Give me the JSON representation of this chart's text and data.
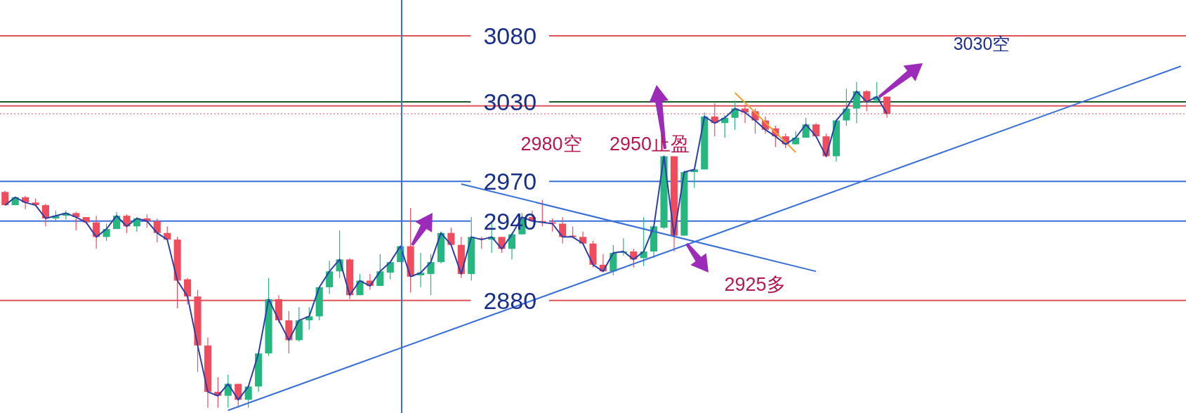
{
  "chart_data": {
    "type": "candlestick",
    "categories": [
      null,
      null,
      null,
      null,
      null,
      null,
      null,
      null,
      null,
      null,
      null,
      null,
      null,
      null,
      null,
      null,
      null,
      null,
      null,
      null,
      null,
      null,
      null,
      null,
      null,
      null,
      null,
      null,
      null,
      null,
      null,
      null,
      null,
      null,
      null,
      null,
      null,
      null,
      null,
      null,
      null,
      null,
      null,
      null,
      null,
      null,
      null,
      null,
      null,
      null,
      null,
      null,
      null,
      null,
      null,
      null,
      null,
      null,
      null,
      null,
      null,
      null,
      null,
      null,
      null,
      null,
      null,
      null,
      null,
      null,
      null,
      null,
      null,
      null,
      null,
      null,
      null,
      null,
      null,
      null,
      null,
      null,
      null,
      null,
      null,
      null,
      null,
      null,
      null,
      null,
      null,
      null,
      null,
      null,
      null,
      null,
      null,
      null,
      null,
      null,
      null,
      null,
      null,
      null,
      null,
      null,
      null,
      null,
      null,
      null,
      null,
      null,
      null,
      null,
      null,
      null,
      null
    ],
    "ohlc": [
      [
        2962,
        2963,
        2952,
        2952
      ],
      [
        2952,
        2958,
        2952,
        2958
      ],
      [
        2958,
        2959,
        2949,
        2954
      ],
      [
        2954,
        2957,
        2952,
        2952
      ],
      [
        2952,
        2953,
        2936,
        2942
      ],
      [
        2942,
        2948,
        2940,
        2944
      ],
      [
        2944,
        2948,
        2941,
        2946
      ],
      [
        2946,
        2947,
        2933,
        2943
      ],
      [
        2943,
        2943,
        2938,
        2939
      ],
      [
        2939,
        2944,
        2919,
        2928
      ],
      [
        2928,
        2938,
        2925,
        2934
      ],
      [
        2934,
        2947,
        2934,
        2944
      ],
      [
        2944,
        2945,
        2931,
        2936
      ],
      [
        2936,
        2943,
        2932,
        2942
      ],
      [
        2942,
        2945,
        2935,
        2940
      ],
      [
        2940,
        2942,
        2924,
        2931
      ],
      [
        2931,
        2936,
        2926,
        2926
      ],
      [
        2926,
        2928,
        2874,
        2895
      ],
      [
        2896,
        2897,
        2877,
        2883
      ],
      [
        2883,
        2888,
        2826,
        2846
      ],
      [
        2846,
        2852,
        2799,
        2811
      ],
      [
        2811,
        2822,
        2799,
        2808
      ],
      [
        2808,
        2824,
        2799,
        2817
      ],
      [
        2817,
        2817,
        2799,
        2805
      ],
      [
        2805,
        2815,
        2799,
        2815
      ],
      [
        2815,
        2840,
        2811,
        2840
      ],
      [
        2840,
        2897,
        2838,
        2881
      ],
      [
        2881,
        2884,
        2863,
        2865
      ],
      [
        2865,
        2872,
        2840,
        2850
      ],
      [
        2850,
        2875,
        2849,
        2865
      ],
      [
        2865,
        2875,
        2858,
        2868
      ],
      [
        2868,
        2890,
        2865,
        2890
      ],
      [
        2890,
        2910,
        2885,
        2902
      ],
      [
        2902,
        2933,
        2897,
        2911
      ],
      [
        2911,
        2912,
        2881,
        2884
      ],
      [
        2884,
        2900,
        2884,
        2895
      ],
      [
        2895,
        2900,
        2888,
        2891
      ],
      [
        2891,
        2915,
        2891,
        2902
      ],
      [
        2901,
        2909,
        2896,
        2909
      ],
      [
        2909,
        2921,
        2909,
        2921
      ],
      [
        2921,
        2950,
        2886,
        2898
      ],
      [
        2899,
        2916,
        2890,
        2901
      ],
      [
        2900,
        2915,
        2884,
        2909
      ],
      [
        2909,
        2932,
        2908,
        2931
      ],
      [
        2931,
        2935,
        2922,
        2922
      ],
      [
        2922,
        2928,
        2897,
        2900
      ],
      [
        2900,
        2943,
        2895,
        2928
      ],
      [
        2927,
        2928,
        2919,
        2926
      ],
      [
        2926,
        2940,
        2916,
        2928
      ],
      [
        2928,
        2928,
        2916,
        2919
      ],
      [
        2919,
        2931,
        2911,
        2930
      ],
      [
        2930,
        2946,
        2930,
        2943
      ],
      [
        2943,
        2948,
        2940,
        2940
      ],
      [
        2940,
        2956,
        2936,
        2939
      ],
      [
        2939,
        2942,
        2932,
        2938
      ],
      [
        2938,
        2943,
        2923,
        2928
      ],
      [
        2929,
        2936,
        2927,
        2928
      ],
      [
        2928,
        2932,
        2923,
        2923
      ],
      [
        2923,
        2925,
        2905,
        2907
      ],
      [
        2907,
        2915,
        2902,
        2902
      ],
      [
        2902,
        2922,
        2899,
        2916
      ],
      [
        2916,
        2927,
        2914,
        2917
      ],
      [
        2917,
        2919,
        2905,
        2911
      ],
      [
        2912,
        2943,
        2906,
        2917
      ],
      [
        2917,
        2936,
        2912,
        2936
      ],
      [
        2935,
        2989,
        2934,
        2989
      ],
      [
        2989,
        2989,
        2917,
        2929
      ],
      [
        2929,
        2978,
        2929,
        2977
      ],
      [
        2977,
        2980,
        2965,
        2979
      ],
      [
        2979,
        3022,
        2979,
        3019
      ],
      [
        3019,
        3029,
        3004,
        3014
      ],
      [
        3014,
        3020,
        3003,
        3018
      ],
      [
        3018,
        3031,
        3009,
        3025
      ],
      [
        3025,
        3028,
        3014,
        3022
      ],
      [
        3023,
        3025,
        3006,
        3016
      ],
      [
        3016,
        3019,
        3006,
        3009
      ],
      [
        3010,
        3012,
        2996,
        3004
      ],
      [
        3004,
        3006,
        2995,
        2998
      ],
      [
        2998,
        3008,
        2998,
        3003
      ],
      [
        3003,
        3018,
        3003,
        3013
      ],
      [
        3013,
        3014,
        3004,
        3004
      ],
      [
        3004,
        3006,
        2988,
        2989
      ],
      [
        2989,
        3016,
        2985,
        3016
      ],
      [
        3016,
        3040,
        3012,
        3025
      ],
      [
        3025,
        3045,
        3014,
        3038
      ],
      [
        3038,
        3039,
        3023,
        3030
      ],
      [
        3031,
        3045,
        3029,
        3034
      ],
      [
        3034,
        3034,
        3018,
        3021
      ],
      null,
      null,
      null,
      null,
      null,
      null,
      null,
      null,
      null,
      null,
      null,
      null,
      null,
      null,
      null,
      null,
      null,
      null,
      null,
      null,
      null,
      null,
      null,
      null,
      null,
      null,
      null,
      null,
      null
    ],
    "colors": [
      "#ef4d5e",
      "#26b67f",
      "#ef4d5e",
      "#ef4d5e",
      "#ef4d5e",
      "#26b67f",
      "#26b67f",
      "#ef4d5e",
      "#ef4d5e",
      "#ef4d5e",
      "#26b67f",
      "#26b67f",
      "#ef4d5e",
      "#26b67f",
      "#ef4d5e",
      "#ef4d5e",
      "#ef4d5e",
      "#ef4d5e",
      "#ef4d5e",
      "#ef4d5e",
      "#ef4d5e",
      "#ef4d5e",
      "#26b67f",
      "#ef4d5e",
      "#26b67f",
      "#26b67f",
      "#26b67f",
      "#ef4d5e",
      "#ef4d5e",
      "#26b67f",
      "#26b67f",
      "#26b67f",
      "#26b67f",
      "#26b67f",
      "#ef4d5e",
      "#26b67f",
      "#ef4d5e",
      "#26b67f",
      "#26b67f",
      "#26b67f",
      "#ef4d5e",
      "#26b67f",
      "#26b67f",
      "#26b67f",
      "#ef4d5e",
      "#ef4d5e",
      "#26b67f",
      "#ef4d5e",
      "#26b67f",
      "#ef4d5e",
      "#26b67f",
      "#26b67f",
      "#ef4d5e",
      "#ef4d5e",
      "#ef4d5e",
      "#ef4d5e",
      "#ef4d5e",
      "#ef4d5e",
      "#ef4d5e",
      "#ef4d5e",
      "#26b67f",
      "#26b67f",
      "#ef4d5e",
      "#26b67f",
      "#26b67f",
      "#26b67f",
      "#ef4d5e",
      "#26b67f",
      "#26b67f",
      "#26b67f",
      "#ef4d5e",
      "#26b67f",
      "#26b67f",
      "#ef4d5e",
      "#ef4d5e",
      "#ef4d5e",
      "#ef4d5e",
      "#ef4d5e",
      "#26b67f",
      "#26b67f",
      "#ef4d5e",
      "#ef4d5e",
      "#26b67f",
      "#26b67f",
      "#26b67f",
      "#ef4d5e",
      "#26b67f",
      "#ef4d5e",
      null,
      null,
      null,
      null,
      null,
      null,
      null,
      null,
      null,
      null,
      null,
      null,
      null,
      null,
      null,
      null,
      null,
      null,
      null,
      null,
      null,
      null,
      null,
      null,
      null,
      null,
      null,
      null,
      null
    ],
    "series": [
      {
        "type": "line",
        "color": "#2b3fa8",
        "values": [
          2952,
          2958,
          2954,
          2952,
          2942,
          2944,
          2946,
          2943,
          2939,
          2928,
          2934,
          2944,
          2936,
          2942,
          2940,
          2931,
          2926,
          2895,
          2883,
          2846,
          2811,
          2808,
          2817,
          2805,
          2815,
          2840,
          2881,
          2865,
          2850,
          2865,
          2868,
          2890,
          2902,
          2911,
          2884,
          2895,
          2891,
          2902,
          2909,
          2921,
          2898,
          2901,
          2909,
          2931,
          2922,
          2900,
          2928,
          2926,
          2928,
          2919,
          2930,
          2943,
          2940,
          2939,
          2938,
          2928,
          2928,
          2923,
          2907,
          2902,
          2916,
          2917,
          2911,
          2917,
          2936,
          2989,
          2929,
          2977,
          2979,
          3019,
          3014,
          3018,
          3025,
          3022,
          3016,
          3009,
          3004,
          2998,
          3003,
          3013,
          3004,
          2989,
          3016,
          3025,
          3038,
          3030,
          3034,
          3021,
          null,
          null,
          null,
          null,
          null,
          null,
          null,
          null,
          null,
          null,
          null,
          null,
          null,
          null,
          null,
          null,
          null,
          null,
          null,
          null,
          null,
          null,
          null,
          null,
          null,
          null,
          null,
          null,
          null
        ]
      },
      {
        "type": "line",
        "color": "#3a6fd8",
        "values": [
          null,
          null,
          null,
          null,
          null,
          null,
          null,
          null,
          null,
          null,
          null,
          null,
          null,
          null,
          null,
          null,
          null,
          null,
          null,
          null,
          null,
          null,
          2797,
          null,
          null,
          null,
          null,
          null,
          null,
          null,
          null,
          null,
          null,
          null,
          null,
          null,
          null,
          null,
          null,
          null,
          null,
          null,
          null,
          null,
          null,
          null,
          null,
          null,
          null,
          null,
          null,
          null,
          null,
          null,
          null,
          null,
          null,
          null,
          null,
          null,
          null,
          null,
          null,
          null,
          null,
          null,
          null,
          null,
          null,
          null,
          null,
          null,
          null,
          null,
          null,
          null,
          null,
          null,
          null,
          null,
          null,
          null,
          null,
          null,
          null,
          null,
          null,
          null,
          null,
          null,
          null,
          null,
          null,
          null,
          null,
          null,
          null,
          null,
          null,
          null,
          null,
          null,
          null,
          null,
          null,
          null,
          null,
          null,
          null,
          null,
          null,
          null,
          null,
          null,
          null,
          null,
          3057
        ]
      },
      {
        "type": "line",
        "color": "#3a6fd8",
        "values": [
          null,
          null,
          null,
          null,
          null,
          null,
          null,
          null,
          null,
          null,
          null,
          null,
          null,
          null,
          null,
          null,
          null,
          null,
          null,
          null,
          null,
          null,
          null,
          null,
          null,
          null,
          null,
          null,
          null,
          null,
          null,
          null,
          null,
          null,
          null,
          null,
          null,
          null,
          null,
          null,
          null,
          null,
          null,
          null,
          null,
          2968,
          null,
          null,
          null,
          null,
          null,
          null,
          null,
          null,
          null,
          null,
          null,
          null,
          null,
          null,
          null,
          null,
          null,
          null,
          null,
          null,
          null,
          null,
          null,
          null,
          null,
          null,
          null,
          null,
          null,
          null,
          null,
          null,
          null,
          null,
          2902,
          null,
          null,
          null,
          null,
          null,
          null,
          null,
          null,
          null,
          null,
          null,
          null,
          null,
          null,
          null,
          null,
          null,
          null,
          null,
          null,
          null,
          null,
          null,
          null,
          null,
          null,
          null,
          null,
          null,
          null,
          null,
          null,
          null,
          null,
          null,
          null
        ]
      },
      {
        "type": "line",
        "color": "#f0a030",
        "values": [
          null,
          null,
          null,
          null,
          null,
          null,
          null,
          null,
          null,
          null,
          null,
          null,
          null,
          null,
          null,
          null,
          null,
          null,
          null,
          null,
          null,
          null,
          null,
          null,
          null,
          null,
          null,
          null,
          null,
          null,
          null,
          null,
          null,
          null,
          null,
          null,
          null,
          null,
          null,
          null,
          null,
          null,
          null,
          null,
          null,
          null,
          null,
          null,
          null,
          null,
          null,
          null,
          null,
          null,
          null,
          null,
          null,
          null,
          null,
          null,
          null,
          null,
          null,
          null,
          null,
          null,
          null,
          null,
          null,
          null,
          null,
          null,
          3037,
          null,
          null,
          null,
          null,
          null,
          2992,
          null,
          null,
          null,
          null,
          null,
          null,
          null,
          null,
          null,
          null,
          null,
          null,
          null,
          null,
          null,
          null,
          null,
          null,
          null,
          null,
          null,
          null,
          null,
          null,
          null,
          null,
          null,
          null,
          null,
          null,
          null,
          null,
          null,
          null,
          null,
          null,
          null,
          null
        ]
      }
    ],
    "ylim": [
      2795,
      3107
    ],
    "tick_labels": false,
    "ref_lines": [
      {
        "axis": "y",
        "value": 3080,
        "label": "3080",
        "color": "#e0525a"
      },
      {
        "axis": "y",
        "value": 3030,
        "label": "3030",
        "color": "#1e5a28"
      },
      {
        "axis": "y",
        "value": 2970,
        "label": "2970",
        "color": "#3a6fd8"
      },
      {
        "axis": "y",
        "value": 2940,
        "label": "2940",
        "color": "#3a6fd8"
      },
      {
        "axis": "y",
        "value": 2880,
        "label": "2880",
        "color": "#e0525a"
      },
      {
        "axis": "y",
        "value": 3027,
        "color": "#e0525a"
      },
      {
        "axis": "y",
        "value": 3021,
        "color": "#e0525a",
        "line_style": "dotted"
      }
    ],
    "annotations": [
      "2980空",
      "2950止盈",
      "2925多",
      "3030空"
    ]
  }
}
